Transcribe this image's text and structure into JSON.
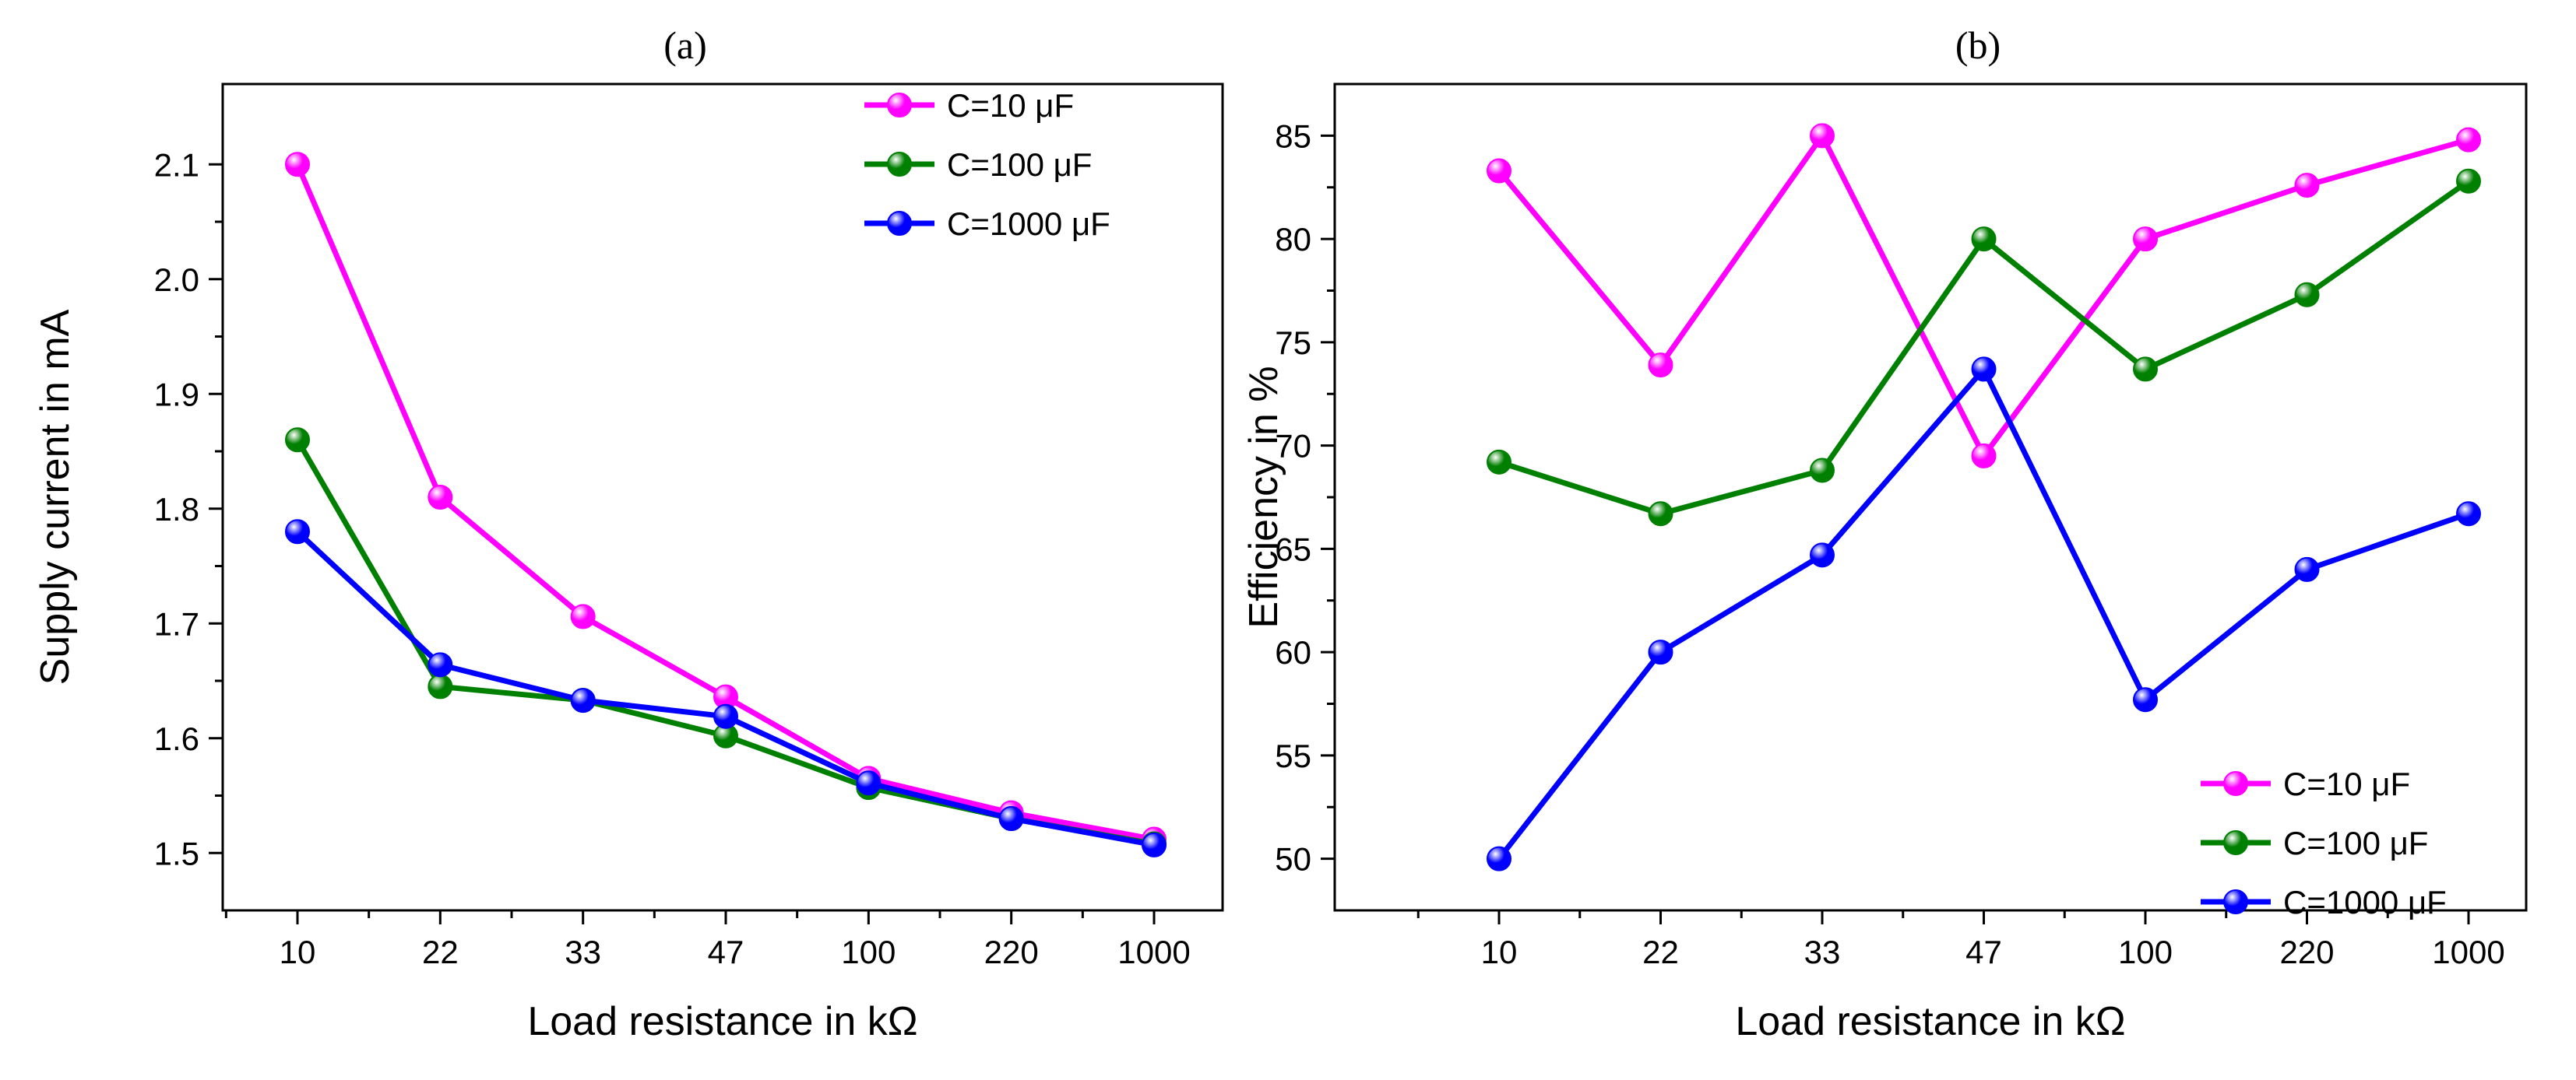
{
  "chart_data": [
    {
      "type": "line",
      "panel_label": "(a)",
      "title": "",
      "xlabel": "Load resistance in kΩ",
      "ylabel": "Supply current in mA",
      "categories": [
        "10",
        "22",
        "33",
        "47",
        "100",
        "220",
        "1000"
      ],
      "ylim": [
        1.45,
        2.17
      ],
      "yticks": [
        "1.5",
        "1.6",
        "1.7",
        "1.8",
        "1.9",
        "2.0",
        "2.1"
      ],
      "legend_position": "top-right",
      "series": [
        {
          "name": "C=10 μF",
          "color": "#ff00ff",
          "values": [
            2.1,
            1.81,
            1.706,
            1.636,
            1.565,
            1.535,
            1.512
          ]
        },
        {
          "name": "C=100 μF",
          "color": "#008000",
          "values": [
            1.86,
            1.645,
            1.633,
            1.602,
            1.557,
            1.53,
            1.508
          ]
        },
        {
          "name": "C=1000 μF",
          "color": "#0000ff",
          "values": [
            1.78,
            1.664,
            1.633,
            1.619,
            1.561,
            1.53,
            1.507
          ]
        }
      ]
    },
    {
      "type": "line",
      "panel_label": "(b)",
      "title": "",
      "xlabel": "Load resistance in kΩ",
      "ylabel": "Efficiency in %",
      "categories": [
        "10",
        "22",
        "33",
        "47",
        "100",
        "220",
        "1000"
      ],
      "ylim": [
        47.5,
        87.5
      ],
      "yticks": [
        "50",
        "55",
        "60",
        "65",
        "70",
        "75",
        "80",
        "85"
      ],
      "legend_position": "bottom-right",
      "series": [
        {
          "name": "C=10 μF",
          "color": "#ff00ff",
          "values": [
            83.3,
            73.9,
            85.0,
            69.5,
            80.0,
            82.6,
            84.8
          ]
        },
        {
          "name": "C=100 μF",
          "color": "#008000",
          "values": [
            69.2,
            66.7,
            68.8,
            80.0,
            73.7,
            77.3,
            82.8
          ]
        },
        {
          "name": "C=1000 μF",
          "color": "#0000ff",
          "values": [
            50.0,
            60.0,
            64.7,
            73.7,
            57.7,
            64.0,
            66.7
          ]
        }
      ]
    }
  ]
}
